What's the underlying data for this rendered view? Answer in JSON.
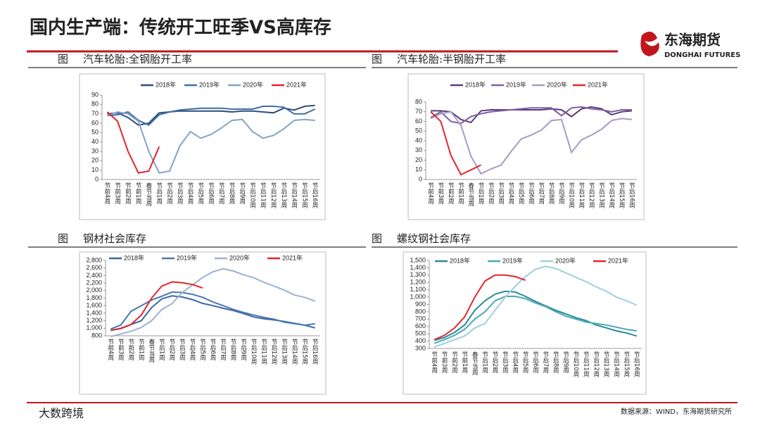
{
  "header": {
    "title": "国内生产端：传统开工旺季VS高库存",
    "logo_cn": "东海期货",
    "logo_en": "DONGHAI FUTURES"
  },
  "footer": {
    "source": "数据来源：WIND，东海期货研究所",
    "watermark": "大数跨境"
  },
  "chart_data": [
    {
      "type": "line",
      "figure_label": "图",
      "title": "汽车轮胎:全钢胎开工率",
      "categories": [
        "节前4周",
        "节前3周",
        "节前2周",
        "节前1周",
        "春节当周",
        "节后1周",
        "节后2周",
        "节后3周",
        "节后4周",
        "节后5周",
        "节后6周",
        "节后7周",
        "节后8周",
        "节后9周",
        "节后10周",
        "节后11周",
        "节后12周",
        "节后13周",
        "节后14周",
        "节后15周",
        "节后16周"
      ],
      "ylim": [
        0,
        90
      ],
      "yticks": [
        0,
        10,
        20,
        30,
        40,
        50,
        60,
        70,
        80,
        90
      ],
      "series": [
        {
          "name": "2018年",
          "color": "#2f4b7c",
          "values": [
            70,
            71,
            66,
            58,
            60,
            71,
            72,
            73,
            73,
            73,
            73,
            73,
            72,
            73,
            73,
            72,
            71,
            76,
            74,
            78,
            79
          ]
        },
        {
          "name": "2019年",
          "color": "#3f6ea5",
          "values": [
            68,
            69,
            72,
            63,
            58,
            69,
            72,
            74,
            75,
            76,
            76,
            76,
            75,
            75,
            75,
            78,
            78,
            77,
            70,
            70,
            75
          ]
        },
        {
          "name": "2020年",
          "color": "#84a3cb",
          "values": [
            68,
            72,
            70,
            62,
            30,
            7,
            9,
            36,
            51,
            44,
            48,
            55,
            63,
            64,
            51,
            44,
            47,
            54,
            63,
            64,
            63
          ]
        },
        {
          "name": "2021年",
          "color": "#e3262a",
          "values": [
            72,
            62,
            30,
            7,
            9,
            35,
            null,
            null,
            null,
            null,
            null,
            null,
            null,
            null,
            null,
            null,
            null,
            null,
            null,
            null,
            null
          ]
        }
      ]
    },
    {
      "type": "line",
      "figure_label": "图",
      "title": "汽车轮胎:半钢胎开工率",
      "categories": [
        "节前4周",
        "节前3周",
        "节前2周",
        "节前1周",
        "春节当周",
        "节后1周",
        "节后2周",
        "节后3周",
        "节后4周",
        "节后5周",
        "节后6周",
        "节后7周",
        "节后8周",
        "节后9周",
        "节后10周",
        "节后11周",
        "节后12周",
        "节后13周",
        "节后14周",
        "节后15周",
        "节后16周"
      ],
      "ylim": [
        0,
        80
      ],
      "yticks": [
        0,
        10,
        20,
        30,
        40,
        50,
        60,
        70,
        80
      ],
      "series": [
        {
          "name": "2018年",
          "color": "#5b3a7a",
          "values": [
            71,
            71,
            70,
            62,
            59,
            71,
            72,
            72,
            72,
            72,
            72,
            72,
            73,
            72,
            65,
            73,
            75,
            73,
            67,
            70,
            71
          ]
        },
        {
          "name": "2019年",
          "color": "#7e5f9f",
          "values": [
            64,
            70,
            60,
            58,
            65,
            68,
            70,
            71,
            72,
            73,
            74,
            74,
            74,
            66,
            74,
            75,
            73,
            72,
            70,
            72,
            72
          ]
        },
        {
          "name": "2020年",
          "color": "#a99ac4",
          "values": [
            63,
            68,
            70,
            56,
            24,
            6,
            11,
            15,
            29,
            42,
            46,
            51,
            61,
            62,
            28,
            41,
            46,
            52,
            61,
            63,
            62
          ]
        },
        {
          "name": "2021年",
          "color": "#e3262a",
          "values": [
            70,
            60,
            25,
            5,
            10,
            15,
            null,
            null,
            null,
            null,
            null,
            null,
            null,
            null,
            null,
            null,
            null,
            null,
            null,
            null,
            null
          ]
        }
      ]
    },
    {
      "type": "line",
      "figure_label": "图",
      "title": "钢材社会库存",
      "categories": [
        "节前4周",
        "节前3周",
        "节前2周",
        "节前1周",
        "春节当周",
        "节后1周",
        "节后2周",
        "节后3周",
        "节后4周",
        "节后5周",
        "节后6周",
        "节后7周",
        "节后8周",
        "节后9周",
        "节后10周",
        "节后11周",
        "节后12周",
        "节后13周",
        "节后14周",
        "节后15周",
        "节后16周"
      ],
      "ylim": [
        800,
        2800
      ],
      "yticks": [
        800,
        {
          "value": 1000,
          "label": "1,000"
        },
        {
          "value": 1200,
          "label": "1,200"
        },
        {
          "value": 1400,
          "label": "1,400"
        },
        {
          "value": 1600,
          "label": "1,600"
        },
        {
          "value": 1800,
          "label": "1,800"
        },
        {
          "value": 2000,
          "label": "2,000"
        },
        {
          "value": 2200,
          "label": "2,200"
        },
        {
          "value": 2400,
          "label": "2,400"
        },
        {
          "value": 2600,
          "label": "2,600"
        },
        {
          "value": 2800,
          "label": "2,800"
        }
      ],
      "series": [
        {
          "name": "2018年",
          "color": "#3b66a5",
          "values": [
            950,
            990,
            1100,
            1200,
            1550,
            1780,
            1860,
            1830,
            1760,
            1660,
            1600,
            1530,
            1470,
            1390,
            1300,
            1250,
            1220,
            1180,
            1130,
            1080,
            1010
          ]
        },
        {
          "name": "2019年",
          "color": "#4a78b0",
          "values": [
            980,
            1090,
            1450,
            1600,
            1750,
            1850,
            1960,
            1950,
            1900,
            1820,
            1700,
            1600,
            1500,
            1420,
            1350,
            1290,
            1240,
            1160,
            1120,
            1080,
            1120
          ]
        },
        {
          "name": "2020年",
          "color": "#9cb1d5",
          "values": [
            780,
            850,
            920,
            1020,
            1200,
            1500,
            1650,
            1950,
            2150,
            2350,
            2500,
            2580,
            2520,
            2420,
            2340,
            2220,
            2120,
            2010,
            1880,
            1820,
            1720
          ]
        },
        {
          "name": "2021年",
          "color": "#e3262a",
          "values": [
            940,
            1000,
            1100,
            1350,
            1800,
            2120,
            2230,
            2210,
            2160,
            2070,
            null,
            null,
            null,
            null,
            null,
            null,
            null,
            null,
            null,
            null,
            null
          ]
        }
      ]
    },
    {
      "type": "line",
      "figure_label": "图",
      "title": "螺纹钢社会库存",
      "categories": [
        "节前4周",
        "节前3周",
        "节前2周",
        "节前1周",
        "春节当周",
        "节后1周",
        "节后2周",
        "节后3周",
        "节后4周",
        "节后5周",
        "节后6周",
        "节后7周",
        "节后8周",
        "节后9周",
        "节后10周",
        "节后11周",
        "节后12周",
        "节后13周",
        "节后14周",
        "节后15周",
        "节后16周"
      ],
      "ylim": [
        300,
        1500
      ],
      "yticks": [
        300,
        400,
        500,
        600,
        700,
        800,
        900,
        {
          "value": 1000,
          "label": "1,000"
        },
        {
          "value": 1100,
          "label": "1,100"
        },
        {
          "value": 1200,
          "label": "1,200"
        },
        {
          "value": 1300,
          "label": "1,300"
        },
        {
          "value": 1400,
          "label": "1,400"
        },
        {
          "value": 1500,
          "label": "1,500"
        }
      ],
      "series": [
        {
          "name": "2018年",
          "color": "#2a8a98",
          "values": [
            410,
            450,
            520,
            620,
            820,
            950,
            1040,
            1080,
            1070,
            1010,
            940,
            880,
            820,
            770,
            720,
            680,
            620,
            580,
            540,
            510,
            470
          ]
        },
        {
          "name": "2019年",
          "color": "#4aa9b8",
          "values": [
            370,
            420,
            480,
            560,
            700,
            800,
            950,
            1010,
            1010,
            980,
            920,
            870,
            800,
            740,
            700,
            660,
            640,
            620,
            590,
            560,
            540
          ]
        },
        {
          "name": "2020年",
          "color": "#9fcfda",
          "values": [
            320,
            370,
            420,
            470,
            580,
            640,
            820,
            1000,
            1150,
            1280,
            1380,
            1420,
            1390,
            1330,
            1270,
            1210,
            1140,
            1080,
            1000,
            950,
            890
          ]
        },
        {
          "name": "2021年",
          "color": "#e3262a",
          "values": [
            420,
            480,
            580,
            730,
            1000,
            1220,
            1300,
            1300,
            1280,
            1230,
            null,
            null,
            null,
            null,
            null,
            null,
            null,
            null,
            null,
            null,
            null
          ]
        }
      ]
    }
  ]
}
